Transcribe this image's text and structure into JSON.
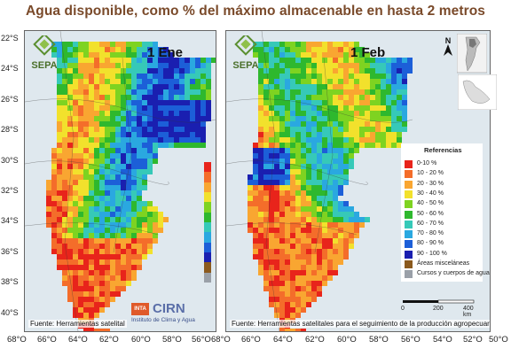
{
  "title": "Agua disponible, como % del máximo almacenable  en hasta 2 metros",
  "panels": [
    {
      "date": "1 Ene",
      "source": "Fuente: Herramientas satelital"
    },
    {
      "date": "1 Feb",
      "source": "Fuente: Herramientas satelitales para el seguimiento de la producción agropecuaria"
    }
  ],
  "latitudes": [
    "22°S",
    "24°S",
    "26°S",
    "28°S",
    "30°S",
    "32°S",
    "34°S",
    "36°S",
    "38°S",
    "40°S"
  ],
  "longitudes": [
    "68°O",
    "66°O",
    "64°O",
    "62°O",
    "60°O",
    "58°O",
    "56°O",
    "54°O",
    "52°O",
    "50°O"
  ],
  "logo_text": "SEPA",
  "inta": {
    "brand": "INTA",
    "name": "CIRN",
    "subtitle": "Instituto de Clima y Agua"
  },
  "legend": {
    "title": "Referencias",
    "items": [
      {
        "label": "0-10 %",
        "color": "#e8241b"
      },
      {
        "label": "10 - 20 %",
        "color": "#f46d2a"
      },
      {
        "label": "20 - 30 %",
        "color": "#f9a631"
      },
      {
        "label": "30 - 40 %",
        "color": "#f2e12c"
      },
      {
        "label": "40 - 50 %",
        "color": "#7ed321"
      },
      {
        "label": "50 - 60 %",
        "color": "#2eb82e"
      },
      {
        "label": "60 - 70 %",
        "color": "#36c9b8"
      },
      {
        "label": "70 - 80 %",
        "color": "#2aa8e0"
      },
      {
        "label": "80 - 90 %",
        "color": "#1c5fd8"
      },
      {
        "label": "90 - 100 %",
        "color": "#1a1fb0"
      },
      {
        "label": "Áreas misceláneas",
        "color": "#8b5a1e"
      },
      {
        "label": "Cursos y cuerpos de agua",
        "color": "#9aa0a8"
      }
    ]
  },
  "scale": {
    "ticks": [
      "0",
      "200",
      "400 km"
    ]
  }
}
